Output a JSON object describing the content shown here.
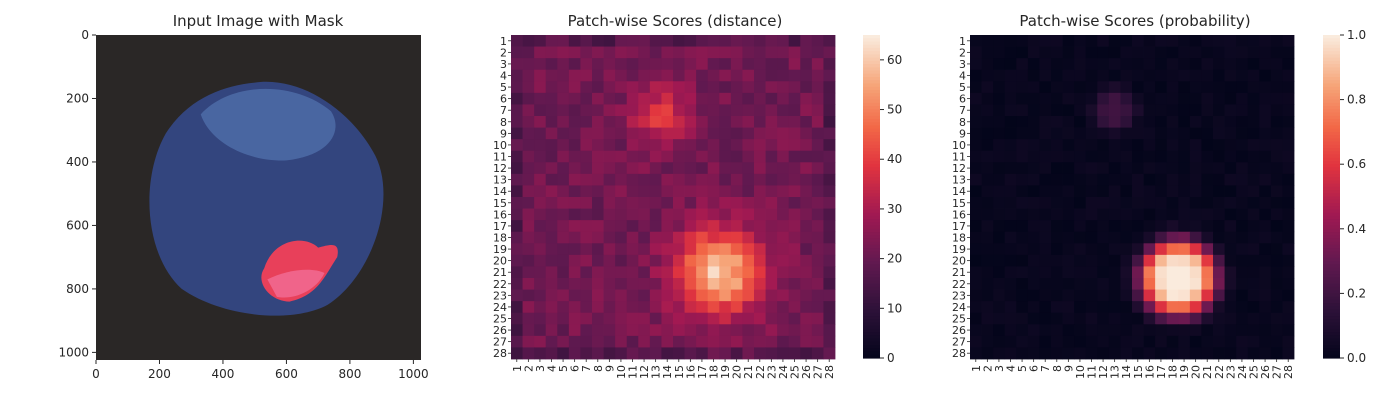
{
  "figure": {
    "panels": [
      {
        "title": "Input Image with Mask"
      },
      {
        "title": "Patch-wise Scores (distance)"
      },
      {
        "title": "Patch-wise Scores (probability)"
      }
    ]
  },
  "chart_data": [
    {
      "type": "image",
      "title": "Input Image with Mask",
      "xlim": [
        0,
        1024
      ],
      "ylim": [
        1024,
        0
      ],
      "xticks": [
        0,
        200,
        400,
        600,
        800,
        1000
      ],
      "yticks": [
        0,
        200,
        400,
        600,
        800,
        1000
      ],
      "colors": {
        "background": "#2a2726",
        "object": "#33457e",
        "object_highlight": "#5272ad",
        "mask": "#e8405a",
        "mask_light": "#f0648a"
      }
    },
    {
      "type": "heatmap",
      "title": "Patch-wise Scores (distance)",
      "rows": 28,
      "cols": 28,
      "row_labels": [
        "1",
        "2",
        "3",
        "4",
        "5",
        "6",
        "7",
        "8",
        "9",
        "10",
        "11",
        "12",
        "13",
        "14",
        "15",
        "16",
        "17",
        "18",
        "19",
        "20",
        "21",
        "22",
        "23",
        "24",
        "25",
        "26",
        "27",
        "28"
      ],
      "col_labels": [
        "1",
        "2",
        "3",
        "4",
        "5",
        "6",
        "7",
        "8",
        "9",
        "10",
        "11",
        "12",
        "13",
        "14",
        "15",
        "16",
        "17",
        "18",
        "19",
        "20",
        "21",
        "22",
        "23",
        "24",
        "25",
        "26",
        "27",
        "28"
      ],
      "colorbar": {
        "min": 0,
        "max": 65,
        "ticks": [
          0,
          10,
          20,
          30,
          40,
          50,
          60
        ]
      },
      "colormap": "rocket",
      "base_value": 22,
      "hotspots": [
        {
          "row": 7.5,
          "col": 13.5,
          "sigma": 1.8,
          "peak": 17
        },
        {
          "row": 21.0,
          "col": 18.5,
          "sigma": 2.6,
          "peak": 38
        }
      ]
    },
    {
      "type": "heatmap",
      "title": "Patch-wise Scores (probability)",
      "rows": 28,
      "cols": 28,
      "row_labels": [
        "1",
        "2",
        "3",
        "4",
        "5",
        "6",
        "7",
        "8",
        "9",
        "10",
        "11",
        "12",
        "13",
        "14",
        "15",
        "16",
        "17",
        "18",
        "19",
        "20",
        "21",
        "22",
        "23",
        "24",
        "25",
        "26",
        "27",
        "28"
      ],
      "col_labels": [
        "1",
        "2",
        "3",
        "4",
        "5",
        "6",
        "7",
        "8",
        "9",
        "10",
        "11",
        "12",
        "13",
        "14",
        "15",
        "16",
        "17",
        "18",
        "19",
        "20",
        "21",
        "22",
        "23",
        "24",
        "25",
        "26",
        "27",
        "28"
      ],
      "colorbar": {
        "min": 0.0,
        "max": 1.0,
        "ticks": [
          "0.0",
          "0.2",
          "0.4",
          "0.6",
          "0.8",
          "1.0"
        ]
      },
      "colormap": "rocket",
      "hotspots": [
        {
          "row": 7.0,
          "col": 13.0,
          "sigma": 1.2,
          "peak": 0.18
        },
        {
          "row": 21.5,
          "col": 18.5,
          "sigma": 2.1,
          "peak": 1.0
        }
      ]
    }
  ]
}
